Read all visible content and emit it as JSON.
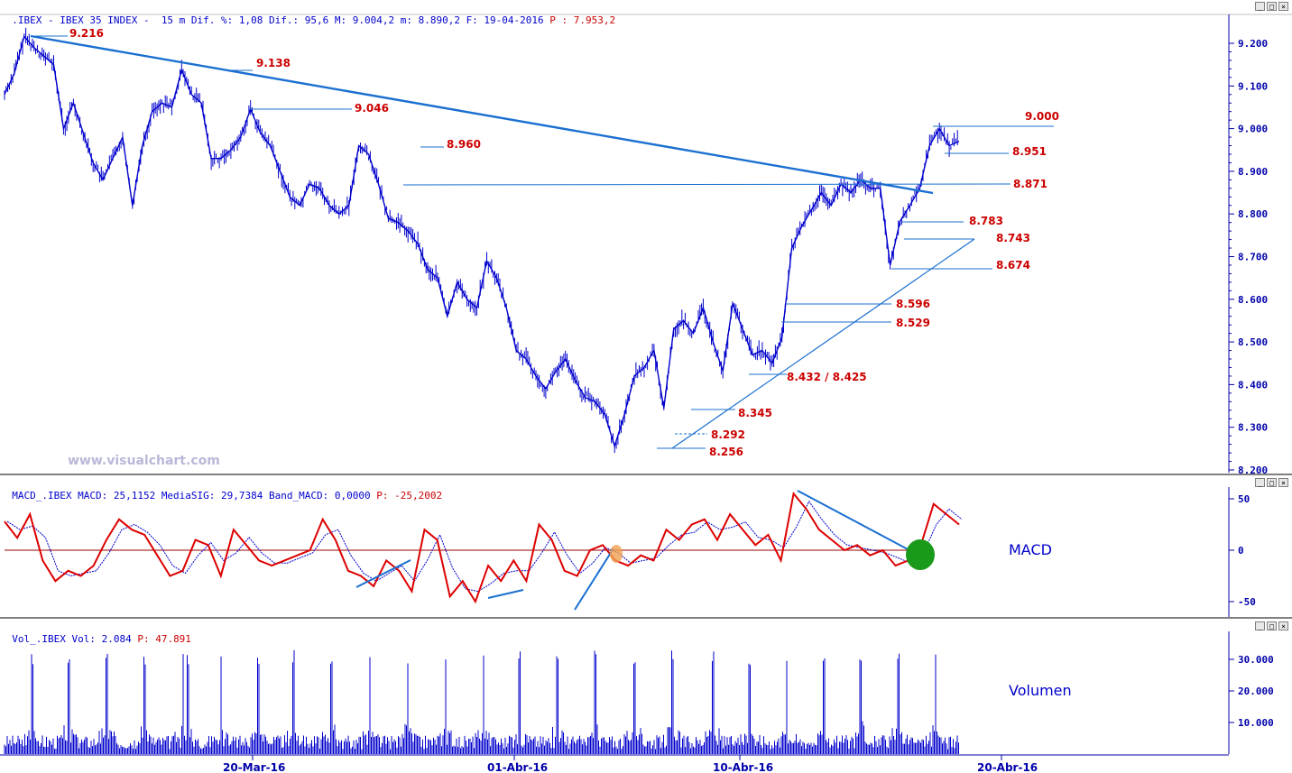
{
  "chart_data": [
    {
      "type": "line",
      "panel": "price",
      "header": {
        "prefix": ".IBEX - IBEX 35 INDEX -  15 m Dif. %: 1,08 Dif.: 95,6 M: 9.004,2 m: 8.890,2 F: 19-04-2016",
        "p_text": "P : 7.953,2"
      },
      "watermark": "www.visualchart.com",
      "x_ticks": [
        "20-Mar-16",
        "01-Abr-16",
        "10-Abr-16",
        "20-Abr-16"
      ],
      "y_ticks": [
        "9.200",
        "9.100",
        "9.000",
        "8.900",
        "8.800",
        "8.700",
        "8.600",
        "8.500",
        "8.400",
        "8.300",
        "8.200"
      ],
      "ylim": [
        8200,
        9200
      ],
      "series": [
        {
          "values": [
            9080,
            9130,
            9216,
            9190,
            9170,
            9150,
            9000,
            9060,
            8990,
            8920,
            8880,
            8930,
            8980,
            8820,
            8960,
            9040,
            9060,
            9050,
            9138,
            9080,
            9060,
            8930,
            8930,
            8950,
            8980,
            9046,
            8990,
            8960,
            8900,
            8840,
            8820,
            8870,
            8860,
            8820,
            8800,
            8820,
            8960,
            8940,
            8870,
            8790,
            8780,
            8760,
            8730,
            8670,
            8650,
            8560,
            8640,
            8600,
            8580,
            8690,
            8650,
            8580,
            8480,
            8460,
            8420,
            8390,
            8430,
            8460,
            8410,
            8370,
            8360,
            8330,
            8256,
            8330,
            8420,
            8440,
            8480,
            8345,
            8530,
            8550,
            8520,
            8580,
            8500,
            8432,
            8590,
            8530,
            8470,
            8480,
            8450,
            8510,
            8720,
            8770,
            8810,
            8850,
            8820,
            8870,
            8850,
            8880,
            8860,
            8860,
            8680,
            8783,
            8820,
            8860,
            8960,
            9000,
            8960,
            8970
          ]
        }
      ],
      "levels": [
        "9.216",
        "9.138",
        "9.046",
        "8.960",
        "8.871",
        "9.000",
        "8.951",
        "8.783",
        "8.743",
        "8.674",
        "8.596",
        "8.529",
        "8.432 / 8.425",
        "8.345",
        "8.292",
        "8.256"
      ]
    },
    {
      "type": "line",
      "panel": "macd",
      "header": {
        "prefix": "MACD_.IBEX MACD: 25,1152 MediaSIG: 29,7384 Band_MACD: 0,0000",
        "p_text": "P: -25,2002"
      },
      "name": "MACD",
      "y_ticks": [
        "50",
        "0",
        "-50"
      ],
      "ylim": [
        -65,
        60
      ],
      "series": [
        {
          "values": [
            28,
            12,
            35,
            -10,
            -30,
            -20,
            -25,
            -15,
            10,
            30,
            20,
            15,
            -5,
            -25,
            -20,
            10,
            5,
            -25,
            20,
            5,
            -10,
            -15,
            -10,
            -5,
            0,
            30,
            10,
            -20,
            -25,
            -35,
            -10,
            -20,
            -40,
            20,
            10,
            -45,
            -30,
            -50,
            -15,
            -30,
            -10,
            -30,
            25,
            10,
            -20,
            -25,
            0,
            5,
            -10,
            -15,
            -5,
            -10,
            20,
            10,
            25,
            30,
            10,
            35,
            20,
            5,
            15,
            -10,
            55,
            40,
            20,
            10,
            0,
            5,
            -5,
            0,
            -15,
            -10,
            5,
            45,
            35,
            25
          ]
        }
      ]
    },
    {
      "type": "bar",
      "panel": "volume",
      "header": {
        "prefix": "Vol_.IBEX Vol: 2.084",
        "p_text": "P: 47.891"
      },
      "name": "Volumen",
      "y_ticks": [
        "30.000",
        "20.000",
        "10.000"
      ],
      "ylim": [
        0,
        36000
      ]
    }
  ],
  "colors": {
    "price": "#0000cc",
    "macd": "#dd0000",
    "signal": "#0000cc",
    "trendline": "#1a6fd0",
    "zero": "#990000",
    "highlight_green": "#1a9a1a",
    "highlight_orange": "#f0a050"
  }
}
